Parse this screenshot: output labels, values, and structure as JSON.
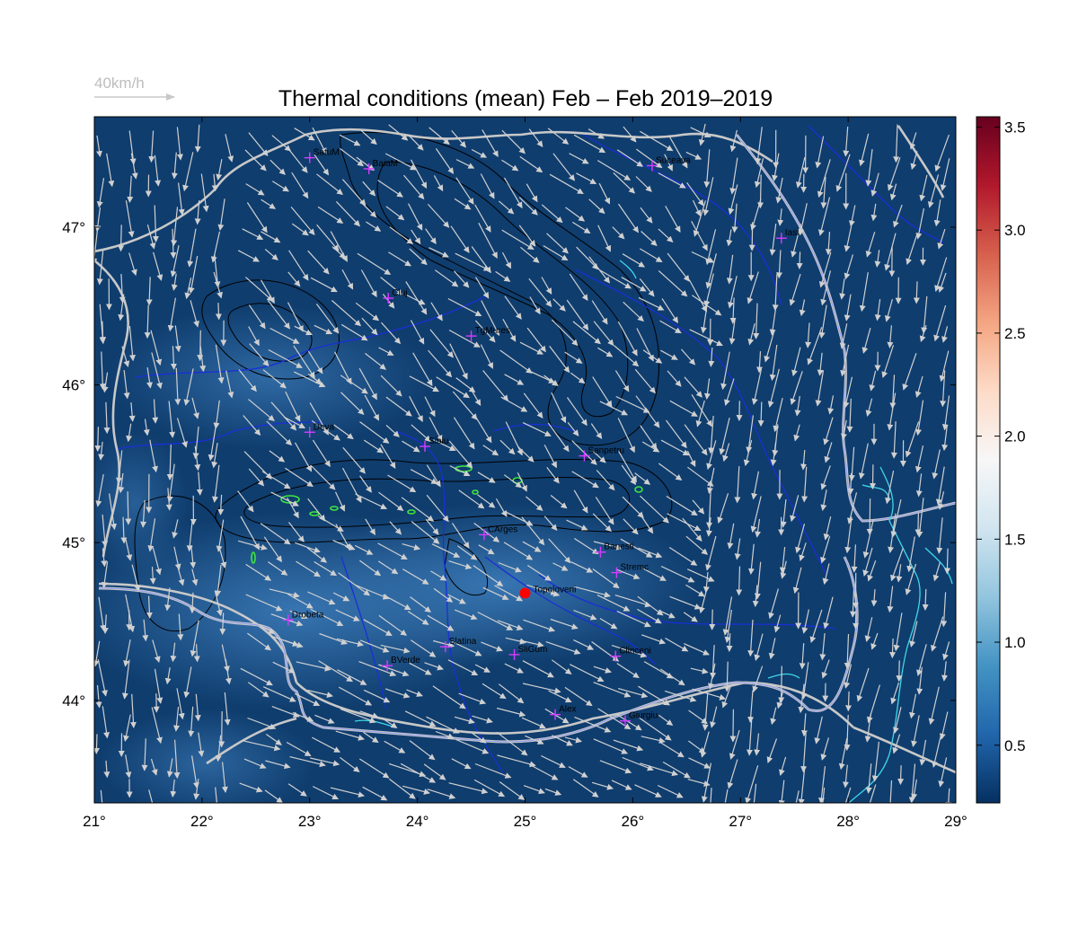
{
  "title": "Thermal conditions (mean) Feb – Feb  2019–2019",
  "reference_vector": {
    "label": "40km/h",
    "color": "#c8c8c8"
  },
  "map": {
    "lon_range": [
      21,
      29
    ],
    "lat_range": [
      43.35,
      47.7
    ],
    "lon_ticks": [
      "21°",
      "22°",
      "23°",
      "24°",
      "25°",
      "26°",
      "27°",
      "28°",
      "29°"
    ],
    "lat_ticks": [
      "44°",
      "45°",
      "46°",
      "47°"
    ],
    "background_color": "#0f3d6e",
    "border_color": "#c8c8c8",
    "river_color": "#1a2fd6",
    "lake_color": "#3fd7e8",
    "contour_color": "#000000",
    "high_contour_color": "#3ee63e"
  },
  "colorbar": {
    "ticks": [
      "0.5",
      "1.0",
      "1.5",
      "2.0",
      "2.5",
      "3.0",
      "3.5"
    ],
    "range": [
      0.22,
      3.55
    ],
    "colors": [
      "#053061",
      "#2166ac",
      "#4393c3",
      "#92c5de",
      "#d1e5f0",
      "#f7f7f7",
      "#fddbc7",
      "#f4a582",
      "#d6604d",
      "#b2182b",
      "#67001f"
    ]
  },
  "cities": [
    {
      "name": "SatuM",
      "lon": 23.0,
      "lat": 47.44
    },
    {
      "name": "BaiaM",
      "lon": 23.55,
      "lat": 47.37
    },
    {
      "name": "Suceava",
      "lon": 26.18,
      "lat": 47.39
    },
    {
      "name": "Iasi",
      "lon": 27.38,
      "lat": 46.93
    },
    {
      "name": "Cluj",
      "lon": 23.73,
      "lat": 46.55
    },
    {
      "name": "TgMures",
      "lon": 24.5,
      "lat": 46.31
    },
    {
      "name": "Deva",
      "lon": 23.0,
      "lat": 45.7
    },
    {
      "name": "Sibiu",
      "lon": 24.07,
      "lat": 45.61
    },
    {
      "name": "Sanpetru",
      "lon": 25.55,
      "lat": 45.55
    },
    {
      "name": "CArges",
      "lon": 24.62,
      "lat": 45.05
    },
    {
      "name": "Banesti",
      "lon": 25.7,
      "lat": 44.94
    },
    {
      "name": "Stremc",
      "lon": 25.85,
      "lat": 44.81
    },
    {
      "name": "Drobeta",
      "lon": 22.8,
      "lat": 44.51
    },
    {
      "name": "Slatina",
      "lon": 24.26,
      "lat": 44.34
    },
    {
      "name": "SliGum",
      "lon": 24.9,
      "lat": 44.29
    },
    {
      "name": "Clinceni",
      "lon": 25.84,
      "lat": 44.28
    },
    {
      "name": "BVerde",
      "lon": 23.72,
      "lat": 44.22
    },
    {
      "name": "Alex",
      "lon": 25.28,
      "lat": 43.91
    },
    {
      "name": "Giurgiu",
      "lon": 25.93,
      "lat": 43.87
    }
  ],
  "highlight_station": {
    "name": "Topoloveni",
    "lon": 25.0,
    "lat": 44.68,
    "color": "#ff0000"
  }
}
